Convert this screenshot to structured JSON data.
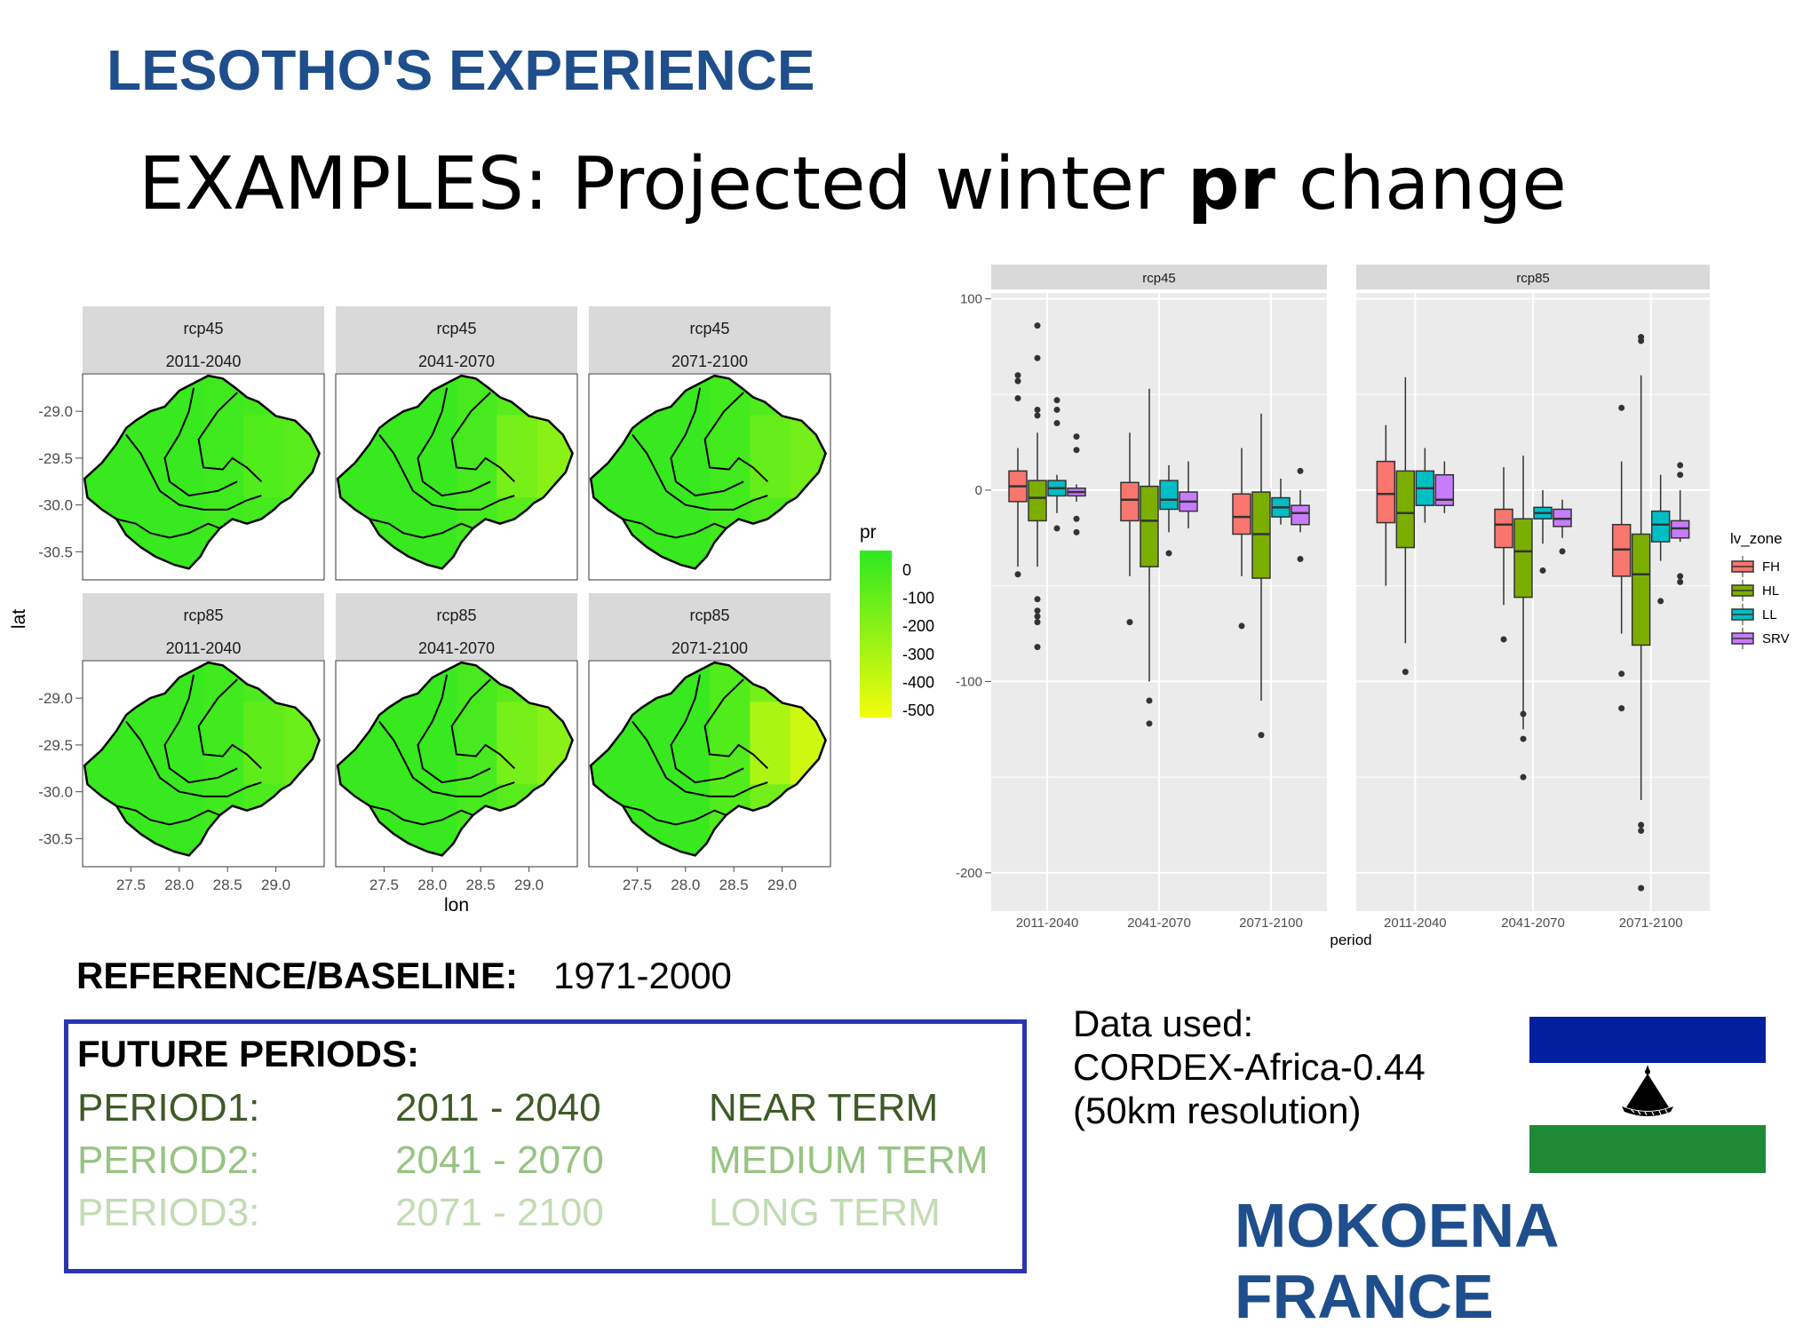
{
  "header": {
    "title": "LESOTHO'S EXPERIENCE"
  },
  "slide_title": {
    "prefix": "EXAMPLES: Projected winter ",
    "bold": "pr",
    "suffix": " change"
  },
  "chart_data": [
    {
      "type": "heatmap",
      "facets": [
        {
          "scenario": "rcp45",
          "period": "2011-2040"
        },
        {
          "scenario": "rcp45",
          "period": "2041-2070"
        },
        {
          "scenario": "rcp45",
          "period": "2071-2100"
        },
        {
          "scenario": "rcp85",
          "period": "2011-2040"
        },
        {
          "scenario": "rcp85",
          "period": "2041-2070"
        },
        {
          "scenario": "rcp85",
          "period": "2071-2100"
        }
      ],
      "xlabel": "lon",
      "ylabel": "lat",
      "x_ticks": [
        "27.5",
        "28.0",
        "28.5",
        "29.0"
      ],
      "y_ticks": [
        "-29.0",
        "-29.5",
        "-30.0",
        "-30.5"
      ],
      "xlim": [
        27.0,
        29.5
      ],
      "ylim": [
        -30.8,
        -28.6
      ],
      "legend": {
        "title": "pr",
        "labels": [
          "0",
          "-100",
          "-200",
          "-300",
          "-400",
          "-500"
        ],
        "placement": "right"
      },
      "colors": {
        "high": "#2ee820",
        "low": "#f4fc0c"
      }
    },
    {
      "type": "box",
      "facets": [
        "rcp45",
        "rcp85"
      ],
      "categories": [
        "2011-2040",
        "2041-2070",
        "2071-2100"
      ],
      "xlabel": "period",
      "ylabel": "",
      "y_ticks": [
        100,
        0,
        -100,
        -200
      ],
      "ylim": [
        -220,
        103
      ],
      "legend": {
        "title": "lv_zone",
        "placement": "right"
      },
      "series": [
        {
          "name": "FH",
          "color": "#f8766d"
        },
        {
          "name": "HL",
          "color": "#7cae00"
        },
        {
          "name": "LL",
          "color": "#00bfc4"
        },
        {
          "name": "SRV",
          "color": "#c77cff"
        }
      ],
      "boxes": {
        "rcp45": [
          [
            {
              "min": -40,
              "q1": -6,
              "med": 2,
              "q3": 10,
              "max": 22,
              "out": [
                60,
                57,
                48,
                -44
              ]
            },
            {
              "min": -40,
              "q1": -16,
              "med": -4,
              "q3": 5,
              "max": 30,
              "out": [
                86,
                69,
                42,
                39,
                -57,
                -63,
                -66,
                -69,
                -82
              ]
            },
            {
              "min": -12,
              "q1": -3,
              "med": 1,
              "q3": 5,
              "max": 8,
              "out": [
                47,
                42,
                35,
                -20
              ]
            },
            {
              "min": -6,
              "q1": -3,
              "med": -1,
              "q3": 1,
              "max": 3,
              "out": [
                28,
                21,
                -15,
                -22
              ]
            }
          ],
          [
            {
              "min": -45,
              "q1": -16,
              "med": -5,
              "q3": 4,
              "max": 30,
              "out": [
                -69
              ]
            },
            {
              "min": -100,
              "q1": -40,
              "med": -16,
              "q3": 2,
              "max": 53,
              "out": [
                -110,
                -122
              ]
            },
            {
              "min": -22,
              "q1": -10,
              "med": -5,
              "q3": 5,
              "max": 13,
              "out": [
                -33
              ]
            },
            {
              "min": -20,
              "q1": -11,
              "med": -6,
              "q3": -1,
              "max": 15,
              "out": []
            }
          ],
          [
            {
              "min": -45,
              "q1": -23,
              "med": -14,
              "q3": -2,
              "max": 22,
              "out": [
                -71
              ]
            },
            {
              "min": -110,
              "q1": -46,
              "med": -23,
              "q3": -1,
              "max": 40,
              "out": [
                -128
              ]
            },
            {
              "min": -18,
              "q1": -14,
              "med": -9,
              "q3": -4,
              "max": 6,
              "out": []
            },
            {
              "min": -22,
              "q1": -18,
              "med": -12,
              "q3": -8,
              "max": 0,
              "out": [
                10,
                -36
              ]
            }
          ]
        ],
        "rcp85": [
          [
            {
              "min": -50,
              "q1": -17,
              "med": -2,
              "q3": 15,
              "max": 34,
              "out": []
            },
            {
              "min": -80,
              "q1": -30,
              "med": -12,
              "q3": 10,
              "max": 59,
              "out": [
                -95
              ]
            },
            {
              "min": -17,
              "q1": -8,
              "med": 1,
              "q3": 10,
              "max": 22,
              "out": []
            },
            {
              "min": -12,
              "q1": -8,
              "med": -5,
              "q3": 8,
              "max": 15,
              "out": []
            }
          ],
          [
            {
              "min": -60,
              "q1": -30,
              "med": -18,
              "q3": -10,
              "max": 12,
              "out": [
                -78
              ]
            },
            {
              "min": -125,
              "q1": -56,
              "med": -32,
              "q3": -15,
              "max": 18,
              "out": [
                -117,
                -130,
                -150
              ]
            },
            {
              "min": -28,
              "q1": -15,
              "med": -12,
              "q3": -9,
              "max": 0,
              "out": [
                -42
              ]
            },
            {
              "min": -25,
              "q1": -19,
              "med": -15,
              "q3": -10,
              "max": -5,
              "out": [
                -32
              ]
            }
          ],
          [
            {
              "min": -75,
              "q1": -45,
              "med": -31,
              "q3": -18,
              "max": 15,
              "out": [
                43,
                -96,
                -114
              ]
            },
            {
              "min": -162,
              "q1": -81,
              "med": -44,
              "q3": -23,
              "max": 60,
              "out": [
                80,
                78,
                -175,
                -178,
                -208
              ]
            },
            {
              "min": -37,
              "q1": -27,
              "med": -18,
              "q3": -11,
              "max": 8,
              "out": [
                -58
              ]
            },
            {
              "min": -27,
              "q1": -25,
              "med": -20,
              "q3": -16,
              "max": 0,
              "out": [
                13,
                8,
                -45,
                -48
              ]
            }
          ]
        ]
      }
    }
  ],
  "reference": {
    "label": "REFERENCE/BASELINE:",
    "value": "1971-2000"
  },
  "future": {
    "header": "FUTURE PERIODS:",
    "rows": [
      {
        "label": "PERIOD1:",
        "range": "2011 - 2040",
        "term": "NEAR TERM",
        "color": "#3e5a26"
      },
      {
        "label": "PERIOD2:",
        "range": "2041 - 2070",
        "term": "MEDIUM TERM",
        "color": "#96c482"
      },
      {
        "label": "PERIOD3:",
        "range": "2071 - 2100",
        "term": "LONG TERM",
        "color": "#c2dcb4"
      }
    ]
  },
  "data_used": {
    "line1": "Data used:",
    "line2": "CORDEX-Africa-0.44",
    "line3": "(50km resolution)"
  },
  "flag": {
    "colors": {
      "blue": "#00209f",
      "white": "#ffffff",
      "green": "#1f8a36",
      "hat": "#000000"
    },
    "icon": "mokorotlo-hat-icon"
  },
  "author": "MOKOENA FRANCE"
}
